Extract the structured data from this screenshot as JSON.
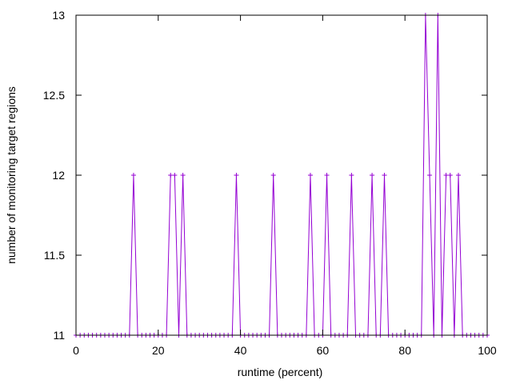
{
  "chart_data": {
    "type": "line",
    "xlabel": "runtime (percent)",
    "ylabel": "number of monitoring target regions",
    "xlim": [
      0,
      100
    ],
    "ylim": [
      11,
      13
    ],
    "xticks": [
      0,
      20,
      40,
      60,
      80,
      100
    ],
    "yticks": [
      11,
      11.5,
      12,
      12.5,
      13
    ],
    "xtick_labels": [
      "0",
      "20",
      "40",
      "60",
      "80",
      "100"
    ],
    "ytick_labels": [
      "11",
      "11.5",
      "12",
      "12.5",
      "13"
    ],
    "grid": false,
    "marker": "plus",
    "color": "#9400d3",
    "series": [
      {
        "x": [
          0,
          1,
          2,
          3,
          4,
          5,
          6,
          7,
          8,
          9,
          10,
          11,
          12,
          13,
          14,
          15,
          16,
          17,
          18,
          19,
          20,
          21,
          22,
          23,
          24,
          25,
          26,
          27,
          28,
          29,
          30,
          31,
          32,
          33,
          34,
          35,
          36,
          37,
          38,
          39,
          40,
          41,
          42,
          43,
          44,
          45,
          46,
          47,
          48,
          49,
          50,
          51,
          52,
          53,
          54,
          55,
          56,
          57,
          58,
          59,
          60,
          61,
          62,
          63,
          64,
          65,
          66,
          67,
          68,
          69,
          70,
          71,
          72,
          73,
          74,
          75,
          76,
          77,
          78,
          79,
          80,
          81,
          82,
          83,
          84,
          85,
          86,
          87,
          88,
          89,
          90,
          91,
          92,
          93,
          94,
          95,
          96,
          97,
          98,
          99,
          100
        ],
        "y": [
          11,
          11,
          11,
          11,
          11,
          11,
          11,
          11,
          11,
          11,
          11,
          11,
          11,
          11,
          12,
          11,
          11,
          11,
          11,
          11,
          11,
          11,
          11,
          12,
          12,
          11,
          12,
          11,
          11,
          11,
          11,
          11,
          11,
          11,
          11,
          11,
          11,
          11,
          11,
          12,
          11,
          11,
          11,
          11,
          11,
          11,
          11,
          11,
          12,
          11,
          11,
          11,
          11,
          11,
          11,
          11,
          11,
          12,
          11,
          11,
          11,
          12,
          11,
          11,
          11,
          11,
          11,
          12,
          11,
          11,
          11,
          11,
          12,
          11,
          11,
          12,
          11,
          11,
          11,
          11,
          11,
          11,
          11,
          11,
          11,
          13,
          12,
          11,
          13,
          11,
          12,
          12,
          11,
          12,
          11,
          11,
          11,
          11,
          11,
          11,
          11
        ]
      }
    ]
  }
}
